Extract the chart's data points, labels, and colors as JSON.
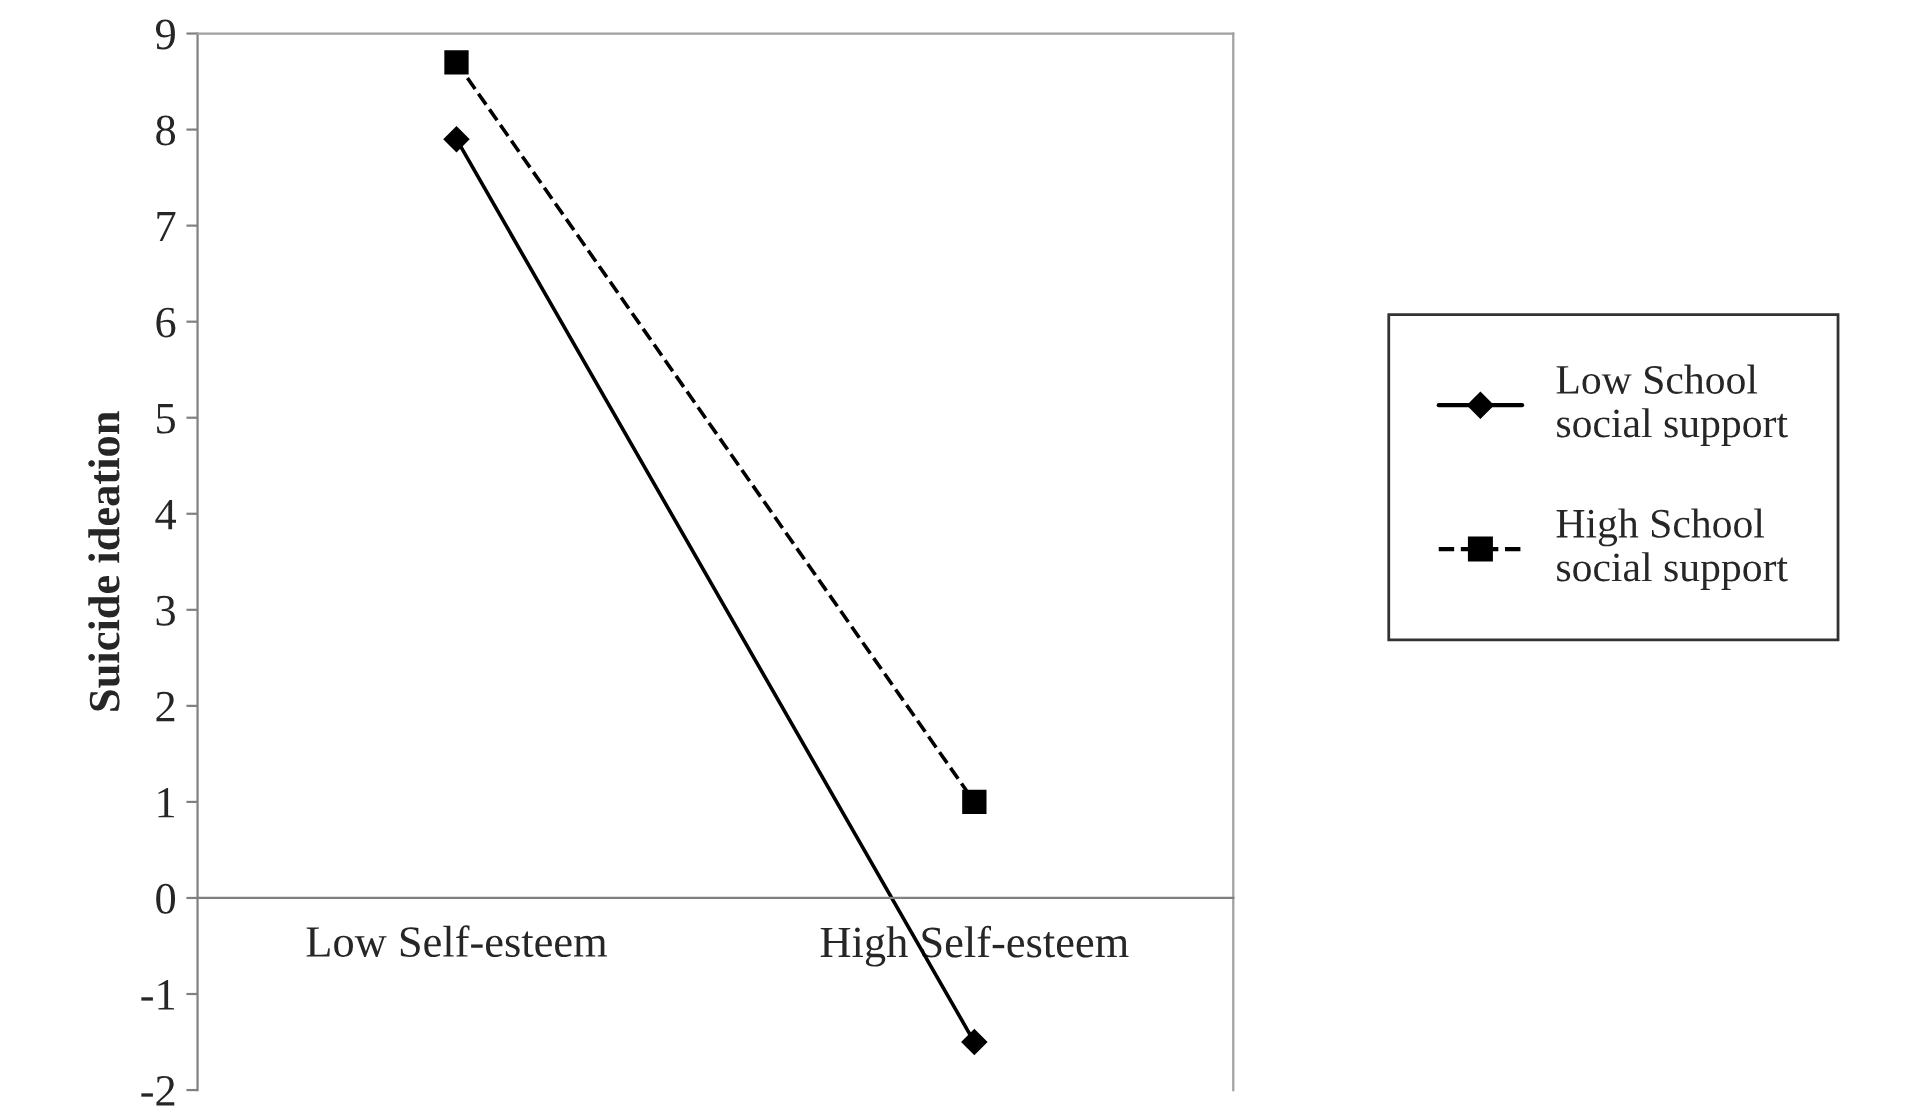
{
  "chart_data": {
    "type": "line",
    "categories": [
      "Low Self-esteem",
      "High Self-esteem"
    ],
    "ylabel": "Suicide ideation",
    "series": [
      {
        "name": "Low School social support",
        "color": "#000000",
        "values": [
          7.9,
          -1.5
        ],
        "marker": "diamond",
        "line_style": "solid"
      },
      {
        "name": "High School social support",
        "color": "#000000",
        "values": [
          8.7,
          1.0
        ],
        "marker": "square",
        "line_style": "dashed"
      }
    ],
    "ylim": [
      -2,
      9
    ],
    "yticks": [
      -2,
      -1,
      0,
      1,
      2,
      3,
      4,
      5,
      6,
      7,
      8,
      9
    ],
    "grid": false,
    "legend": "right"
  }
}
